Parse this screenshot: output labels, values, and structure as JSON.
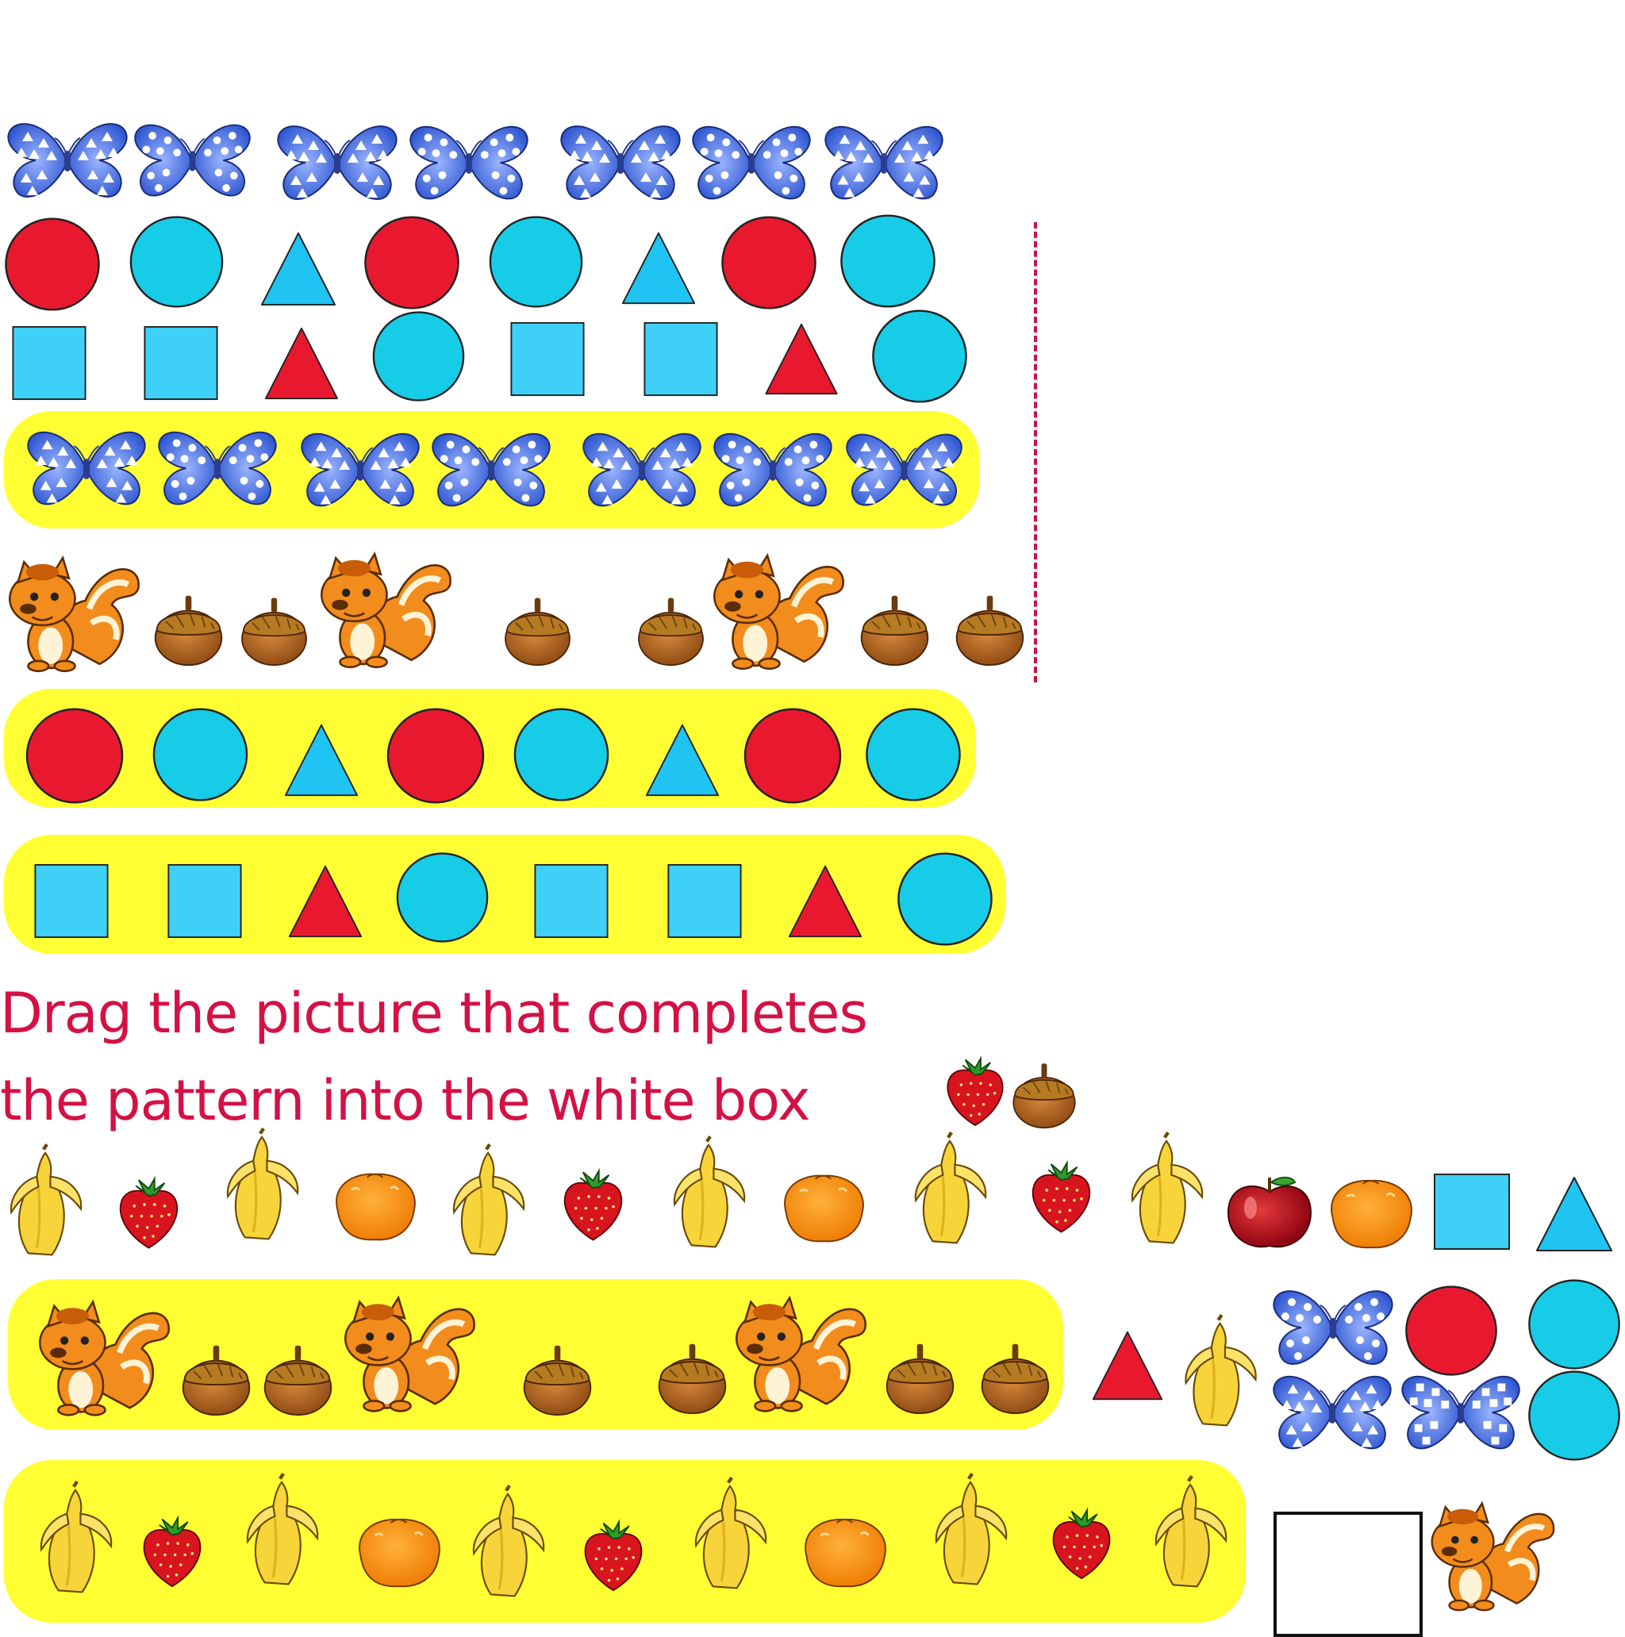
{
  "instruction": {
    "line1": "Drag the picture that completes",
    "line2": "the pattern into the white box"
  },
  "colors": {
    "red": "#e8192f",
    "cyan": "#16cce6",
    "sky": "#3fd0f7",
    "highlight": "#ffff33",
    "butterfly": "#3a66d8",
    "text": "#d41145",
    "dashed_line": "#c8143c"
  },
  "patterns": [
    {
      "id": "butterflies",
      "items": [
        "butterfly-triangle-spots",
        "butterfly-dot-spots",
        "butterfly-triangle-spots",
        "butterfly-dot-spots",
        "butterfly-triangle-spots",
        "butterfly-dot-spots",
        "butterfly-triangle-spots"
      ]
    },
    {
      "id": "circles-triangles",
      "items": [
        "red-circle",
        "cyan-circle",
        "cyan-triangle",
        "red-circle",
        "cyan-circle",
        "cyan-triangle",
        "red-circle",
        "cyan-circle"
      ]
    },
    {
      "id": "squares-triangles",
      "items": [
        "cyan-square",
        "cyan-square",
        "red-triangle",
        "cyan-circle",
        "cyan-square",
        "cyan-square",
        "red-triangle",
        "cyan-circle"
      ]
    },
    {
      "id": "squirrel-acorns",
      "items": [
        "squirrel",
        "acorn",
        "acorn",
        "squirrel",
        "acorn",
        "acorn",
        "squirrel",
        "acorn",
        "acorn"
      ]
    },
    {
      "id": "fruits",
      "items": [
        "banana",
        "strawberry",
        "banana",
        "orange",
        "banana",
        "strawberry",
        "banana",
        "orange",
        "banana",
        "strawberry",
        "banana"
      ]
    }
  ],
  "answer_choices": [
    "strawberry",
    "acorn",
    "apple",
    "orange",
    "cyan-square",
    "cyan-triangle",
    "butterfly-dot-spots",
    "red-circle",
    "cyan-circle",
    "red-triangle",
    "banana",
    "butterfly-triangle-spots",
    "butterfly-square-spots",
    "squirrel"
  ]
}
